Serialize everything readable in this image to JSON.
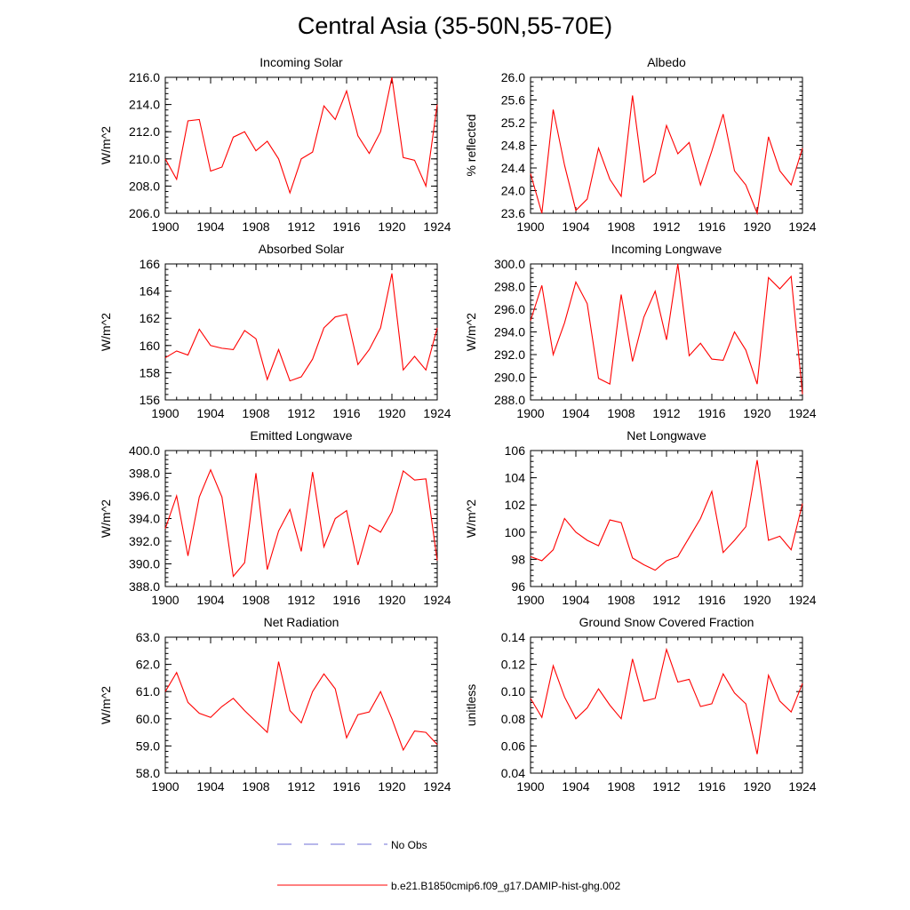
{
  "figure": {
    "title": "Central Asia (35-50N,55-70E)"
  },
  "legend": {
    "entries": [
      {
        "label": "No Obs",
        "color": "#6f6fd6",
        "dashed": true
      },
      {
        "label": "b.e21.B1850cmip6.f09_g17.DAMIP-hist-ghg.002",
        "color": "#ff0000",
        "dashed": false
      }
    ]
  },
  "chart_data": [
    {
      "type": "line",
      "title": "Incoming Solar",
      "ylabel": "W/m^2",
      "xlim": [
        1900,
        1924
      ],
      "ylim": [
        206.0,
        216.0
      ],
      "xticks": [
        "1900",
        "1904",
        "1908",
        "1912",
        "1916",
        "1920",
        "1924"
      ],
      "yticks": [
        "206.0",
        "208.0",
        "210.0",
        "212.0",
        "214.0",
        "216.0"
      ],
      "series": [
        {
          "color": "#ff0000",
          "x_start": 1900,
          "values": [
            210.0,
            208.5,
            212.8,
            212.9,
            209.1,
            209.4,
            211.6,
            212.0,
            210.6,
            211.3,
            210.0,
            207.5,
            210.0,
            210.5,
            213.9,
            212.9,
            215.0,
            211.7,
            210.4,
            212.0,
            216.0,
            210.1,
            209.9,
            208.0,
            214.0
          ]
        }
      ]
    },
    {
      "type": "line",
      "title": "Albedo",
      "ylabel": "% reflected",
      "xlim": [
        1900,
        1924
      ],
      "ylim": [
        23.6,
        26.0
      ],
      "xticks": [
        "1900",
        "1904",
        "1908",
        "1912",
        "1916",
        "1920",
        "1924"
      ],
      "yticks": [
        "23.6",
        "24.0",
        "24.4",
        "24.8",
        "25.2",
        "25.6",
        "26.0"
      ],
      "series": [
        {
          "color": "#ff0000",
          "x_start": 1900,
          "values": [
            24.3,
            23.6,
            25.43,
            24.45,
            23.65,
            23.85,
            24.75,
            24.2,
            23.9,
            25.68,
            24.15,
            24.3,
            25.15,
            24.65,
            24.85,
            24.1,
            24.7,
            25.35,
            24.35,
            24.1,
            23.6,
            24.95,
            24.35,
            24.1,
            24.75
          ]
        }
      ]
    },
    {
      "type": "line",
      "title": "Absorbed Solar",
      "ylabel": "W/m^2",
      "xlim": [
        1900,
        1924
      ],
      "ylim": [
        156,
        166
      ],
      "xticks": [
        "1900",
        "1904",
        "1908",
        "1912",
        "1916",
        "1920",
        "1924"
      ],
      "yticks": [
        "156",
        "158",
        "160",
        "162",
        "164",
        "166"
      ],
      "series": [
        {
          "color": "#ff0000",
          "x_start": 1900,
          "values": [
            159.1,
            159.6,
            159.3,
            161.2,
            160.0,
            159.8,
            159.7,
            161.1,
            160.5,
            157.5,
            159.7,
            157.4,
            157.7,
            159.0,
            161.3,
            162.1,
            162.3,
            158.6,
            159.7,
            161.3,
            165.3,
            158.2,
            159.2,
            158.2,
            161.3
          ]
        }
      ]
    },
    {
      "type": "line",
      "title": "Incoming Longwave",
      "ylabel": "W/m^2",
      "xlim": [
        1900,
        1924
      ],
      "ylim": [
        288.0,
        300.0
      ],
      "xticks": [
        "1900",
        "1904",
        "1908",
        "1912",
        "1916",
        "1920",
        "1924"
      ],
      "yticks": [
        "288.0",
        "290.0",
        "292.0",
        "294.0",
        "296.0",
        "298.0",
        "300.0"
      ],
      "series": [
        {
          "color": "#ff0000",
          "x_start": 1900,
          "values": [
            295.0,
            298.1,
            292.0,
            294.8,
            298.4,
            296.5,
            289.9,
            289.4,
            297.3,
            291.4,
            295.3,
            297.6,
            293.3,
            300.0,
            291.9,
            293.0,
            291.6,
            291.5,
            294.0,
            292.4,
            289.4,
            298.8,
            297.8,
            298.9,
            288.5
          ]
        }
      ]
    },
    {
      "type": "line",
      "title": "Emitted Longwave",
      "ylabel": "W/m^2",
      "xlim": [
        1900,
        1924
      ],
      "ylim": [
        388.0,
        400.0
      ],
      "xticks": [
        "1900",
        "1904",
        "1908",
        "1912",
        "1916",
        "1920",
        "1924"
      ],
      "yticks": [
        "388.0",
        "390.0",
        "392.0",
        "394.0",
        "396.0",
        "398.0",
        "400.0"
      ],
      "series": [
        {
          "color": "#ff0000",
          "x_start": 1900,
          "values": [
            393.1,
            396.0,
            390.7,
            395.9,
            398.3,
            395.9,
            388.9,
            390.1,
            398.0,
            389.5,
            392.9,
            394.8,
            391.1,
            398.1,
            391.5,
            394.0,
            394.7,
            389.9,
            393.4,
            392.8,
            394.6,
            398.2,
            397.4,
            397.5,
            390.3
          ]
        }
      ]
    },
    {
      "type": "line",
      "title": "Net Longwave",
      "ylabel": "W/m^2",
      "xlim": [
        1900,
        1924
      ],
      "ylim": [
        96,
        106
      ],
      "xticks": [
        "1900",
        "1904",
        "1908",
        "1912",
        "1916",
        "1920",
        "1924"
      ],
      "yticks": [
        "96",
        "98",
        "100",
        "102",
        "104",
        "106"
      ],
      "series": [
        {
          "color": "#ff0000",
          "x_start": 1900,
          "values": [
            98.2,
            97.9,
            98.7,
            101.0,
            100.0,
            99.4,
            99.0,
            100.9,
            100.7,
            98.1,
            97.6,
            97.2,
            97.9,
            98.2,
            99.6,
            101.0,
            103.0,
            98.5,
            99.4,
            100.4,
            105.3,
            99.4,
            99.7,
            98.7,
            102.1
          ]
        }
      ]
    },
    {
      "type": "line",
      "title": "Net Radiation",
      "ylabel": "W/m^2",
      "xlim": [
        1900,
        1924
      ],
      "ylim": [
        58.0,
        63.0
      ],
      "xticks": [
        "1900",
        "1904",
        "1908",
        "1912",
        "1916",
        "1920",
        "1924"
      ],
      "yticks": [
        "58.0",
        "59.0",
        "60.0",
        "61.0",
        "62.0",
        "63.0"
      ],
      "series": [
        {
          "color": "#ff0000",
          "x_start": 1900,
          "values": [
            61.0,
            61.7,
            60.6,
            60.2,
            60.05,
            60.45,
            60.75,
            60.3,
            59.9,
            59.5,
            62.1,
            60.3,
            59.85,
            61.0,
            61.65,
            61.1,
            59.3,
            60.15,
            60.25,
            61.0,
            60.0,
            58.85,
            59.55,
            59.5,
            59.05
          ]
        }
      ]
    },
    {
      "type": "line",
      "title": "Ground Snow Covered Fraction",
      "ylabel": "unitless",
      "xlim": [
        1900,
        1924
      ],
      "ylim": [
        0.04,
        0.14
      ],
      "xticks": [
        "1900",
        "1904",
        "1908",
        "1912",
        "1916",
        "1920",
        "1924"
      ],
      "yticks": [
        "0.04",
        "0.06",
        "0.08",
        "0.10",
        "0.12",
        "0.14"
      ],
      "series": [
        {
          "color": "#ff0000",
          "x_start": 1900,
          "values": [
            0.095,
            0.081,
            0.119,
            0.096,
            0.08,
            0.088,
            0.102,
            0.09,
            0.08,
            0.124,
            0.093,
            0.095,
            0.131,
            0.107,
            0.109,
            0.089,
            0.091,
            0.113,
            0.099,
            0.091,
            0.054,
            0.112,
            0.093,
            0.085,
            0.106
          ]
        }
      ]
    }
  ]
}
